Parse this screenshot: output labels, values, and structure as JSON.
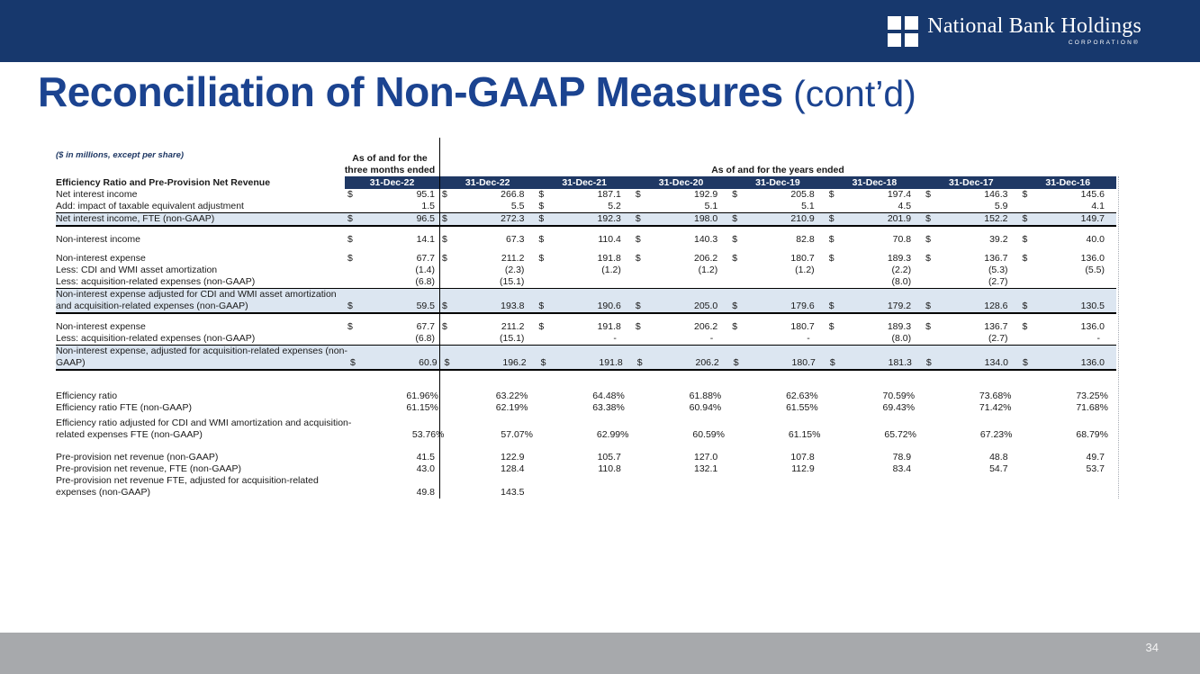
{
  "header": {
    "logo_text": "National Bank Holdings",
    "logo_sub": "CORPORATION®"
  },
  "title": {
    "main": "Reconciliation of Non-GAAP Measures",
    "suffix": " (cont’d)"
  },
  "colors": {
    "topbar_navy": "#17386d",
    "title_blue": "#1b4390",
    "band_navy": "#1f3864",
    "highlight_blue": "#dce6f1",
    "footer_gray": "#a7a9ac"
  },
  "table": {
    "note": "($ in millions, except per share)",
    "group_left_line1": "As of and for the",
    "group_left_line2": "three months ended",
    "group_right": "As of and for the years ended",
    "section_label": "Efficiency Ratio and Pre-Provision Net Revenue",
    "columns": [
      "31-Dec-22",
      "31-Dec-22",
      "31-Dec-21",
      "31-Dec-20",
      "31-Dec-19",
      "31-Dec-18",
      "31-Dec-17",
      "31-Dec-16"
    ],
    "rows": [
      {
        "type": "data",
        "label": "Net interest income",
        "cells": [
          "$ 95.1",
          "$ 266.8",
          "$ 187.1",
          "$ 192.9",
          "$ 205.8",
          "$ 197.4",
          "$ 146.3",
          "$ 145.6"
        ]
      },
      {
        "type": "data",
        "label": "Add: impact of taxable equivalent adjustment",
        "cells": [
          "1.5",
          "5.5",
          "$ 5.2",
          "5.1",
          "5.1",
          "4.5",
          "5.9",
          "4.1"
        ]
      },
      {
        "type": "total",
        "label": "Net interest income, FTE (non-GAAP)",
        "cells": [
          "$ 96.5",
          "$ 272.3",
          "$ 192.3",
          "$ 198.0",
          "$ 210.9",
          "$ 201.9",
          "$ 152.2",
          "$ 149.7"
        ]
      },
      {
        "type": "spacer",
        "h": 8
      },
      {
        "type": "data",
        "label": "Non-interest income",
        "cells": [
          "$ 14.1",
          "$ 67.3",
          "$ 110.4",
          "$ 140.3",
          "$ 82.8",
          "$ 70.8",
          "$ 39.2",
          "$ 40.0"
        ]
      },
      {
        "type": "spacer",
        "h": 8
      },
      {
        "type": "data",
        "label": "Non-interest expense",
        "cells": [
          "$ 67.7",
          "$ 211.2",
          "$ 191.8",
          "$ 206.2",
          "$ 180.7",
          "$ 189.3",
          "$ 136.7",
          "$ 136.0"
        ]
      },
      {
        "type": "data",
        "label": "Less: CDI and WMI asset amortization",
        "cells": [
          "(1.4)",
          "(2.3)",
          "(1.2)",
          "(1.2)",
          "(1.2)",
          "(2.2)",
          "(5.3)",
          "(5.5)"
        ]
      },
      {
        "type": "data",
        "label": "Less: acquisition-related expenses (non-GAAP)",
        "cells": [
          "(6.8)",
          "(15.1)",
          "",
          "",
          "",
          "(8.0)",
          "(2.7)",
          ""
        ]
      },
      {
        "type": "total",
        "label": "Non-interest expense adjusted for CDI and WMI asset amortization",
        "label2": "and acquisition-related expenses (non-GAAP)",
        "cells": [
          "$ 59.5",
          "$ 193.8",
          "$ 190.6",
          "$ 205.0",
          "$ 179.6",
          "$ 179.2",
          "$ 128.6",
          "$ 130.5"
        ]
      },
      {
        "type": "spacer",
        "h": 8
      },
      {
        "type": "data",
        "label": "Non-interest expense",
        "cells": [
          "$ 67.7",
          "$ 211.2",
          "$ 191.8",
          "$ 206.2",
          "$ 180.7",
          "$ 189.3",
          "$ 136.7",
          "$ 136.0"
        ]
      },
      {
        "type": "data",
        "label": "Less: acquisition-related expenses (non-GAAP)",
        "cells": [
          "(6.8)",
          "(15.1)",
          "-",
          "-",
          "-",
          "(8.0)",
          "(2.7)",
          "-"
        ]
      },
      {
        "type": "total",
        "label": "Non-interest expense, adjusted for acquisition-related expenses (non-",
        "label2": "GAAP)",
        "cells": [
          "$ 60.9",
          "$ 196.2",
          "$ 191.8",
          "$ 206.2",
          "$ 180.7",
          "$ 181.3",
          "$ 134.0",
          "$ 136.0"
        ]
      },
      {
        "type": "spacer",
        "h": 22
      },
      {
        "type": "data",
        "label": "Efficiency ratio",
        "cells": [
          "61.96%",
          "63.22%",
          "64.48%",
          "61.88%",
          "62.63%",
          "70.59%",
          "73.68%",
          "73.25%"
        ]
      },
      {
        "type": "data",
        "label": "Efficiency ratio FTE (non-GAAP)",
        "cells": [
          "61.15%",
          "62.19%",
          "63.38%",
          "60.94%",
          "61.55%",
          "69.43%",
          "71.42%",
          "71.68%"
        ]
      },
      {
        "type": "spacer",
        "h": 4
      },
      {
        "type": "data",
        "label": "Efficiency ratio adjusted for CDI and WMI amortization and acquisition-",
        "label2": "related expenses FTE (non-GAAP)",
        "cells": [
          "53.76%",
          "57.07%",
          "62.99%",
          "60.59%",
          "61.15%",
          "65.72%",
          "67.23%",
          "68.79%"
        ]
      },
      {
        "type": "spacer",
        "h": 12
      },
      {
        "type": "data",
        "label": "Pre-provision net revenue (non-GAAP)",
        "cells": [
          "41.5",
          "122.9",
          "105.7",
          "127.0",
          "107.8",
          "78.9",
          "48.8",
          "49.7"
        ]
      },
      {
        "type": "data",
        "label": "Pre-provision net revenue, FTE (non-GAAP)",
        "cells": [
          "43.0",
          "128.4",
          "110.8",
          "132.1",
          "112.9",
          "83.4",
          "54.7",
          "53.7"
        ]
      },
      {
        "type": "data",
        "label": "Pre-provision net revenue FTE, adjusted for acquisition-related",
        "label2": "expenses (non-GAAP)",
        "cells": [
          "49.8",
          "143.5",
          "",
          "",
          "",
          "",
          "",
          ""
        ]
      }
    ]
  },
  "footer": {
    "page_number": "34"
  }
}
